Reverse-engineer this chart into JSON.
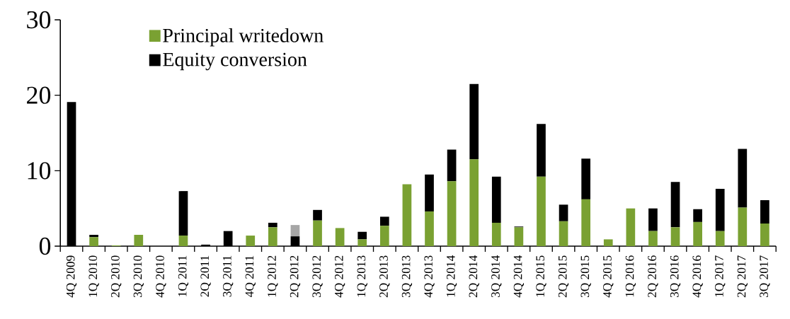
{
  "chart_data": {
    "type": "bar",
    "stacked": true,
    "legend": "top left",
    "categories": [
      "4Q 2009",
      "1Q 2010",
      "2Q 2010",
      "3Q 2010",
      "4Q 2010",
      "1Q 2011",
      "2Q 2011",
      "3Q 2011",
      "4Q 2011",
      "1Q 2012",
      "2Q 2012",
      "3Q 2012",
      "4Q 2012",
      "1Q 2013",
      "2Q 2013",
      "3Q 2013",
      "4Q 2013",
      "1Q 2014",
      "2Q 2014",
      "3Q 2014",
      "4Q 2014",
      "1Q 2015",
      "2Q 2015",
      "3Q 2015",
      "4Q 2015",
      "1Q 2016",
      "2Q 2016",
      "3Q 2016",
      "4Q 2016",
      "1Q 2017",
      "2Q 2017",
      "3Q 2017"
    ],
    "series": [
      {
        "name": "Principal writedown",
        "color": "#7aa132",
        "values": [
          0,
          1.2,
          0.1,
          1.5,
          0,
          1.4,
          0,
          0,
          1.4,
          2.5,
          0,
          3.4,
          2.4,
          0.9,
          2.7,
          8.2,
          4.6,
          8.6,
          11.5,
          3.1,
          2.5,
          9.2,
          3.3,
          6.2,
          0.9,
          5.0,
          2.0,
          2.5,
          3.2,
          2.0,
          5.1,
          3.0
        ]
      },
      {
        "name": "Equity conversion",
        "color": "#000000",
        "values": [
          19.1,
          0.3,
          0,
          0,
          0,
          5.9,
          0.2,
          2.0,
          0,
          0.6,
          1.3,
          1.4,
          0,
          1.0,
          1.2,
          0,
          4.9,
          4.2,
          10.0,
          6.1,
          0.1,
          7.0,
          2.2,
          5.4,
          0,
          0,
          3.0,
          6.0,
          1.7,
          5.6,
          7.8,
          3.1
        ]
      },
      {
        "color": "#a6a6a6",
        "values": [
          0,
          0,
          0,
          0,
          0,
          0,
          0,
          0,
          0,
          0,
          1.5,
          0,
          0,
          0,
          0,
          0,
          0,
          0,
          0,
          0,
          0,
          0,
          0,
          0,
          0,
          0,
          0,
          0,
          0,
          0,
          0,
          0
        ]
      }
    ],
    "ylim": [
      0,
      30
    ],
    "yticks": [
      0,
      10,
      20,
      30
    ]
  }
}
